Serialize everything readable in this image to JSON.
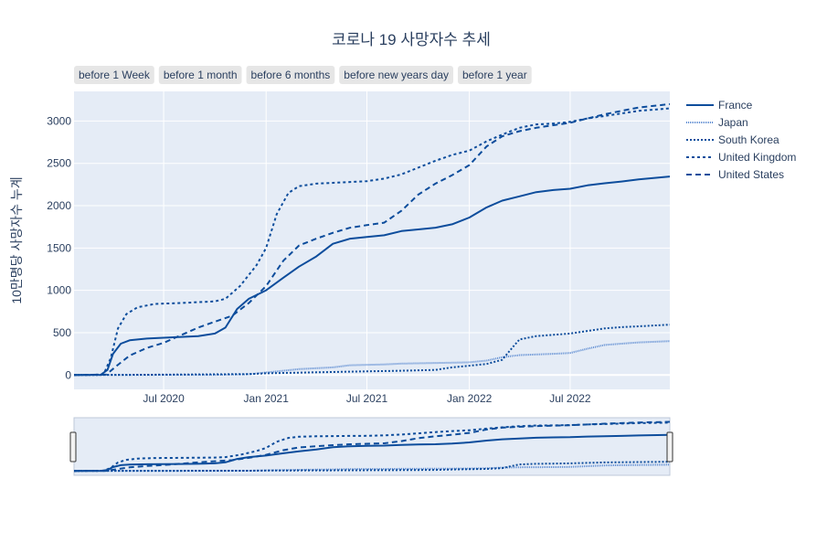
{
  "chart_data": {
    "type": "line",
    "title": "코로나 19 사망자수 추세",
    "ylabel": "10만명당 사망자수 누계",
    "xlabel": "",
    "ylim": [
      -170,
      3350
    ],
    "xlim": [
      "2020-01-22",
      "2022-12-27"
    ],
    "grid": true,
    "legend_position": "right",
    "x_ticks": [
      {
        "date": "2020-07-01",
        "label": "Jul 2020"
      },
      {
        "date": "2021-01-01",
        "label": "Jan 2021"
      },
      {
        "date": "2021-07-01",
        "label": "Jul 2021"
      },
      {
        "date": "2022-01-01",
        "label": "Jan 2022"
      },
      {
        "date": "2022-07-01",
        "label": "Jul 2022"
      }
    ],
    "y_ticks": [
      0,
      500,
      1000,
      1500,
      2000,
      2500,
      3000
    ],
    "range_buttons": [
      "before 1 Week",
      "before 1 month",
      "before 6 months",
      "before new years day",
      "before 1 year"
    ],
    "series": [
      {
        "name": "France",
        "color": "#0d4d9c",
        "dash": "solid",
        "points": [
          [
            "2020-01-22",
            0
          ],
          [
            "2020-03-10",
            2
          ],
          [
            "2020-03-22",
            60
          ],
          [
            "2020-04-01",
            250
          ],
          [
            "2020-04-15",
            370
          ],
          [
            "2020-05-01",
            410
          ],
          [
            "2020-06-01",
            430
          ],
          [
            "2020-07-01",
            440
          ],
          [
            "2020-08-01",
            450
          ],
          [
            "2020-09-01",
            460
          ],
          [
            "2020-10-01",
            490
          ],
          [
            "2020-10-20",
            560
          ],
          [
            "2020-11-10",
            780
          ],
          [
            "2020-12-01",
            900
          ],
          [
            "2021-01-01",
            1000
          ],
          [
            "2021-02-01",
            1150
          ],
          [
            "2021-03-01",
            1280
          ],
          [
            "2021-04-01",
            1400
          ],
          [
            "2021-05-01",
            1550
          ],
          [
            "2021-06-01",
            1610
          ],
          [
            "2021-07-01",
            1630
          ],
          [
            "2021-08-01",
            1650
          ],
          [
            "2021-09-01",
            1700
          ],
          [
            "2021-10-01",
            1720
          ],
          [
            "2021-11-01",
            1740
          ],
          [
            "2021-12-01",
            1780
          ],
          [
            "2022-01-01",
            1860
          ],
          [
            "2022-02-01",
            1980
          ],
          [
            "2022-03-01",
            2060
          ],
          [
            "2022-04-01",
            2110
          ],
          [
            "2022-05-01",
            2160
          ],
          [
            "2022-06-01",
            2185
          ],
          [
            "2022-07-01",
            2200
          ],
          [
            "2022-08-01",
            2240
          ],
          [
            "2022-09-01",
            2265
          ],
          [
            "2022-10-01",
            2285
          ],
          [
            "2022-11-01",
            2310
          ],
          [
            "2022-12-27",
            2345
          ]
        ]
      },
      {
        "name": "Japan",
        "color": "#5b8ad1",
        "dash": "1,1",
        "points": [
          [
            "2020-01-22",
            0
          ],
          [
            "2020-06-01",
            1
          ],
          [
            "2020-10-01",
            2
          ],
          [
            "2020-12-01",
            8
          ],
          [
            "2021-01-01",
            30
          ],
          [
            "2021-02-01",
            50
          ],
          [
            "2021-03-01",
            70
          ],
          [
            "2021-05-01",
            90
          ],
          [
            "2021-06-01",
            115
          ],
          [
            "2021-08-01",
            125
          ],
          [
            "2021-09-01",
            135
          ],
          [
            "2021-12-01",
            145
          ],
          [
            "2022-01-01",
            150
          ],
          [
            "2022-02-01",
            170
          ],
          [
            "2022-03-01",
            210
          ],
          [
            "2022-04-01",
            235
          ],
          [
            "2022-06-01",
            250
          ],
          [
            "2022-07-01",
            260
          ],
          [
            "2022-08-01",
            310
          ],
          [
            "2022-09-01",
            355
          ],
          [
            "2022-10-01",
            370
          ],
          [
            "2022-11-01",
            385
          ],
          [
            "2022-12-27",
            400
          ]
        ]
      },
      {
        "name": "South Korea",
        "color": "#0d4d9c",
        "dash": "2,2",
        "points": [
          [
            "2020-01-22",
            0
          ],
          [
            "2020-06-01",
            3
          ],
          [
            "2020-12-01",
            10
          ],
          [
            "2021-01-01",
            20
          ],
          [
            "2021-06-01",
            40
          ],
          [
            "2021-09-01",
            50
          ],
          [
            "2021-11-01",
            60
          ],
          [
            "2021-12-01",
            90
          ],
          [
            "2022-01-01",
            110
          ],
          [
            "2022-02-01",
            130
          ],
          [
            "2022-03-01",
            180
          ],
          [
            "2022-03-20",
            330
          ],
          [
            "2022-04-01",
            420
          ],
          [
            "2022-05-01",
            460
          ],
          [
            "2022-06-01",
            475
          ],
          [
            "2022-07-01",
            490
          ],
          [
            "2022-08-01",
            520
          ],
          [
            "2022-09-01",
            550
          ],
          [
            "2022-10-01",
            565
          ],
          [
            "2022-11-01",
            575
          ],
          [
            "2022-12-27",
            595
          ]
        ]
      },
      {
        "name": "United Kingdom",
        "color": "#0d4d9c",
        "dash": "3,3",
        "points": [
          [
            "2020-01-22",
            0
          ],
          [
            "2020-03-15",
            5
          ],
          [
            "2020-03-28",
            200
          ],
          [
            "2020-04-10",
            550
          ],
          [
            "2020-04-25",
            720
          ],
          [
            "2020-05-15",
            800
          ],
          [
            "2020-06-15",
            840
          ],
          [
            "2020-08-01",
            850
          ],
          [
            "2020-10-01",
            870
          ],
          [
            "2020-10-20",
            900
          ],
          [
            "2020-11-15",
            1050
          ],
          [
            "2020-12-15",
            1300
          ],
          [
            "2021-01-01",
            1500
          ],
          [
            "2021-01-20",
            1900
          ],
          [
            "2021-02-10",
            2150
          ],
          [
            "2021-03-01",
            2230
          ],
          [
            "2021-04-01",
            2260
          ],
          [
            "2021-06-01",
            2280
          ],
          [
            "2021-07-01",
            2290
          ],
          [
            "2021-08-01",
            2320
          ],
          [
            "2021-09-01",
            2370
          ],
          [
            "2021-10-01",
            2450
          ],
          [
            "2021-11-01",
            2530
          ],
          [
            "2021-12-01",
            2600
          ],
          [
            "2022-01-01",
            2650
          ],
          [
            "2022-02-01",
            2760
          ],
          [
            "2022-03-01",
            2840
          ],
          [
            "2022-04-01",
            2920
          ],
          [
            "2022-05-01",
            2960
          ],
          [
            "2022-06-01",
            2970
          ],
          [
            "2022-07-01",
            2990
          ],
          [
            "2022-08-01",
            3030
          ],
          [
            "2022-09-01",
            3060
          ],
          [
            "2022-10-01",
            3090
          ],
          [
            "2022-11-01",
            3120
          ],
          [
            "2022-12-27",
            3150
          ]
        ]
      },
      {
        "name": "United States",
        "color": "#0d4d9c",
        "dash": "6,4",
        "points": [
          [
            "2020-01-22",
            0
          ],
          [
            "2020-03-20",
            5
          ],
          [
            "2020-04-10",
            120
          ],
          [
            "2020-05-01",
            230
          ],
          [
            "2020-06-01",
            320
          ],
          [
            "2020-07-01",
            380
          ],
          [
            "2020-08-01",
            470
          ],
          [
            "2020-09-01",
            560
          ],
          [
            "2020-10-01",
            630
          ],
          [
            "2020-11-01",
            700
          ],
          [
            "2020-12-01",
            850
          ],
          [
            "2021-01-01",
            1050
          ],
          [
            "2021-02-01",
            1350
          ],
          [
            "2021-03-01",
            1530
          ],
          [
            "2021-04-01",
            1610
          ],
          [
            "2021-05-01",
            1680
          ],
          [
            "2021-06-01",
            1740
          ],
          [
            "2021-07-01",
            1770
          ],
          [
            "2021-08-01",
            1800
          ],
          [
            "2021-09-01",
            1940
          ],
          [
            "2021-10-01",
            2130
          ],
          [
            "2021-11-01",
            2260
          ],
          [
            "2021-12-01",
            2360
          ],
          [
            "2022-01-01",
            2480
          ],
          [
            "2022-02-01",
            2700
          ],
          [
            "2022-03-01",
            2820
          ],
          [
            "2022-04-01",
            2880
          ],
          [
            "2022-05-01",
            2920
          ],
          [
            "2022-06-01",
            2950
          ],
          [
            "2022-07-01",
            2980
          ],
          [
            "2022-08-01",
            3030
          ],
          [
            "2022-09-01",
            3080
          ],
          [
            "2022-10-01",
            3120
          ],
          [
            "2022-11-01",
            3160
          ],
          [
            "2022-12-27",
            3200
          ]
        ]
      }
    ]
  }
}
